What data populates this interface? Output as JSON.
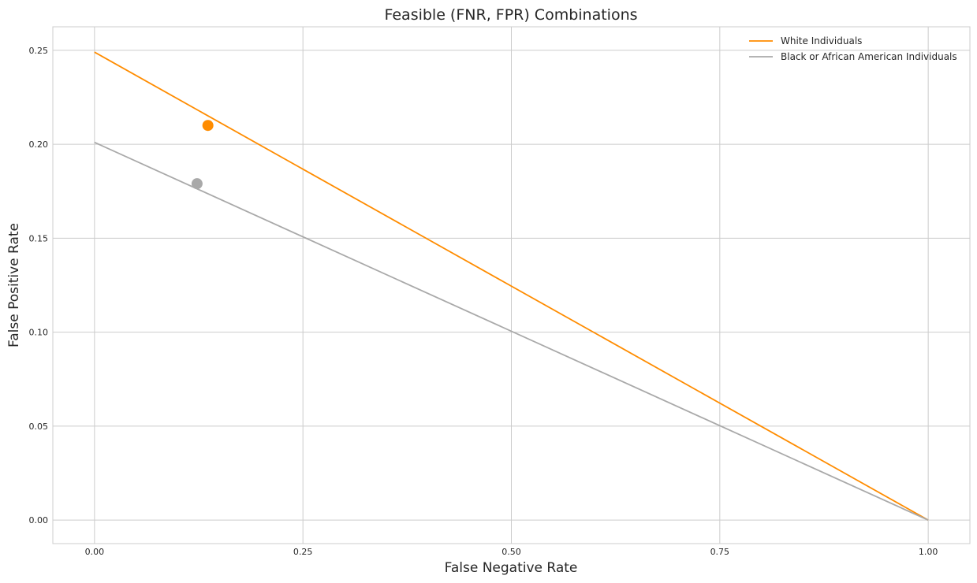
{
  "chart_data": {
    "type": "line",
    "title": "Feasible (FNR, FPR) Combinations",
    "xlabel": "False Negative Rate",
    "ylabel": "False Positive Rate",
    "xlim": [
      -0.05,
      1.05
    ],
    "ylim": [
      -0.0125,
      0.2625
    ],
    "x_ticks": [
      0.0,
      0.25,
      0.5,
      0.75,
      1.0
    ],
    "x_tick_labels": [
      "0.00",
      "0.25",
      "0.50",
      "0.75",
      "1.00"
    ],
    "y_ticks": [
      0.0,
      0.05,
      0.1,
      0.15,
      0.2,
      0.25
    ],
    "y_tick_labels": [
      "0.00",
      "0.05",
      "0.10",
      "0.15",
      "0.20",
      "0.25"
    ],
    "grid": true,
    "legend_position": "top-right",
    "series": [
      {
        "name": "White Individuals",
        "color": "#ff8c00",
        "x": [
          0.0,
          1.0
        ],
        "y": [
          0.249,
          0.0
        ],
        "point": {
          "x": 0.136,
          "y": 0.21
        }
      },
      {
        "name": "Black or African American Individuals",
        "color": "#a9a9a9",
        "x": [
          0.0,
          1.0
        ],
        "y": [
          0.201,
          0.0
        ],
        "point": {
          "x": 0.123,
          "y": 0.179
        }
      }
    ]
  }
}
